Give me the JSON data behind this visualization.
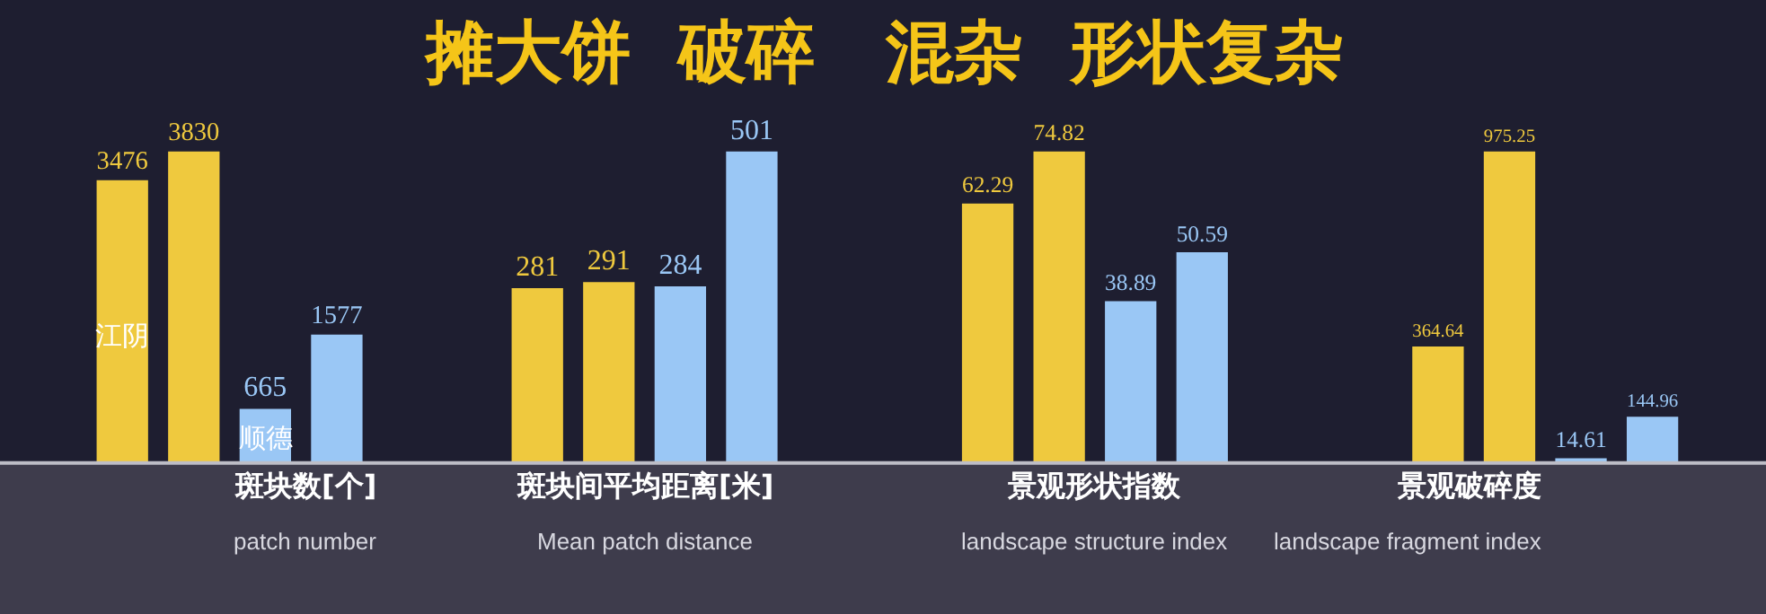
{
  "chart_data": [
    {
      "type": "other",
      "title": "摊大饼  破碎   混杂  形状复杂"
    },
    {
      "type": "bar",
      "xlabel": "斑块数[个]\npatch number",
      "categories": [
        null,
        null,
        null,
        null
      ],
      "tick_labels": false,
      "data_labels": true,
      "values": [
        3476,
        3830,
        665,
        1577
      ],
      "colors": [
        "#efc93e",
        "#efc93e",
        "#9ac7f5",
        "#9ac7f5"
      ],
      "annotations": [
        "江阴",
        "顺德"
      ]
    },
    {
      "type": "bar",
      "xlabel": "斑块间平均距离[米]\nMean patch distance",
      "categories": [
        null,
        null,
        null,
        null
      ],
      "tick_labels": false,
      "data_labels": true,
      "values": [
        281,
        291,
        284,
        501
      ],
      "colors": [
        "#efc93e",
        "#efc93e",
        "#9ac7f5",
        "#9ac7f5"
      ]
    },
    {
      "type": "bar",
      "xlabel": "景观形状指数\nlandscape structure index",
      "categories": [
        null,
        null,
        null,
        null
      ],
      "tick_labels": false,
      "data_labels": true,
      "values": [
        62.29,
        74.82,
        38.89,
        50.59
      ],
      "colors": [
        "#efc93e",
        "#efc93e",
        "#9ac7f5",
        "#9ac7f5"
      ]
    },
    {
      "type": "bar",
      "xlabel": "景观破碎度\nlandscape fragment index",
      "categories": [
        null,
        null,
        null,
        null
      ],
      "tick_labels": false,
      "data_labels": true,
      "values": [
        364.64,
        975.25,
        14.61,
        144.96
      ],
      "colors": [
        "#efc93e",
        "#efc93e",
        "#9ac7f5",
        "#9ac7f5"
      ]
    }
  ]
}
